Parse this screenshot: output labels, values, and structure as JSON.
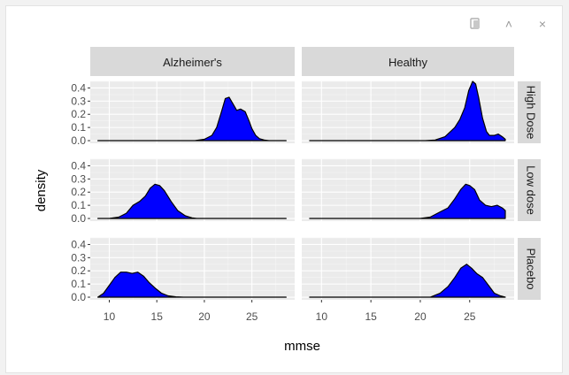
{
  "toolbar": {
    "buttons": [
      {
        "name": "export-icon"
      },
      {
        "name": "collapse-icon",
        "glyph": "˄"
      },
      {
        "name": "close-icon",
        "glyph": "×"
      }
    ]
  },
  "colors": {
    "panel_bg": "#ebebeb",
    "grid_major": "#ffffff",
    "grid_minor": "#f5f5f5",
    "strip_bg": "#d9d9d9",
    "fill": "#0000ff",
    "outline": "#000000",
    "tick": "#333333"
  },
  "chart_data": {
    "type": "area",
    "xlabel": "mmse",
    "ylabel": "density",
    "xlim": [
      8,
      29.5
    ],
    "ylim": [
      -0.02,
      0.45
    ],
    "x_ticks": [
      10,
      15,
      20,
      25
    ],
    "y_ticks": [
      0.0,
      0.1,
      0.2,
      0.3,
      0.4
    ],
    "x_tick_labels": [
      "10",
      "15",
      "20",
      "25"
    ],
    "y_tick_labels": [
      "0.0",
      "0.1",
      "0.2",
      "0.3",
      "0.4"
    ],
    "col_facets": [
      "Alzheimer's",
      "Healthy"
    ],
    "row_facets": [
      "High Dose",
      "Low dose",
      "Placebo"
    ],
    "panels": [
      {
        "col": "Alzheimer's",
        "row": "High Dose",
        "x": [
          8.8,
          19.0,
          20.0,
          20.8,
          21.3,
          21.8,
          22.2,
          22.6,
          23.0,
          23.4,
          23.8,
          24.3,
          24.7,
          25.0,
          25.4,
          25.8,
          26.3,
          26.8,
          27.3,
          28.6
        ],
        "y": [
          0.0,
          0.0,
          0.01,
          0.04,
          0.1,
          0.22,
          0.32,
          0.33,
          0.28,
          0.23,
          0.24,
          0.22,
          0.15,
          0.09,
          0.04,
          0.015,
          0.005,
          0.0,
          0.0,
          0.0
        ]
      },
      {
        "col": "Healthy",
        "row": "High Dose",
        "x": [
          8.8,
          20.5,
          21.5,
          22.5,
          23.5,
          24.0,
          24.5,
          24.9,
          25.3,
          25.6,
          25.9,
          26.3,
          26.7,
          27.0,
          27.5,
          27.9,
          28.3,
          28.6
        ],
        "y": [
          0.0,
          0.0,
          0.005,
          0.03,
          0.1,
          0.16,
          0.25,
          0.38,
          0.45,
          0.43,
          0.33,
          0.17,
          0.07,
          0.04,
          0.04,
          0.05,
          0.03,
          0.01
        ]
      },
      {
        "col": "Alzheimer's",
        "row": "Low dose",
        "x": [
          8.8,
          10.0,
          11.0,
          11.8,
          12.5,
          13.2,
          13.8,
          14.3,
          14.8,
          15.3,
          15.8,
          16.5,
          17.2,
          18.0,
          18.7,
          19.2,
          28.6
        ],
        "y": [
          0.0,
          0.0,
          0.01,
          0.04,
          0.1,
          0.13,
          0.17,
          0.23,
          0.26,
          0.25,
          0.21,
          0.13,
          0.06,
          0.02,
          0.005,
          0.0,
          0.0
        ]
      },
      {
        "col": "Healthy",
        "row": "Low dose",
        "x": [
          8.8,
          20.0,
          21.0,
          22.0,
          22.8,
          23.5,
          24.1,
          24.6,
          25.0,
          25.5,
          26.0,
          26.6,
          27.2,
          27.8,
          28.3,
          28.6
        ],
        "y": [
          0.0,
          0.0,
          0.01,
          0.05,
          0.08,
          0.15,
          0.22,
          0.26,
          0.25,
          0.22,
          0.14,
          0.1,
          0.09,
          0.1,
          0.08,
          0.06
        ]
      },
      {
        "col": "Alzheimer's",
        "row": "Placebo",
        "x": [
          8.8,
          9.4,
          10.0,
          10.6,
          11.2,
          11.8,
          12.4,
          13.0,
          13.6,
          14.2,
          14.8,
          15.5,
          16.2,
          17.0,
          17.8,
          28.6
        ],
        "y": [
          0.0,
          0.03,
          0.09,
          0.15,
          0.19,
          0.19,
          0.18,
          0.19,
          0.16,
          0.11,
          0.07,
          0.03,
          0.01,
          0.003,
          0.0,
          0.0
        ]
      },
      {
        "col": "Healthy",
        "row": "Placebo",
        "x": [
          8.8,
          21.0,
          22.0,
          22.8,
          23.5,
          24.1,
          24.7,
          25.2,
          25.7,
          26.3,
          26.9,
          27.5,
          28.1,
          28.6
        ],
        "y": [
          0.0,
          0.0,
          0.03,
          0.08,
          0.15,
          0.22,
          0.25,
          0.22,
          0.18,
          0.15,
          0.09,
          0.03,
          0.01,
          0.0
        ]
      }
    ]
  }
}
